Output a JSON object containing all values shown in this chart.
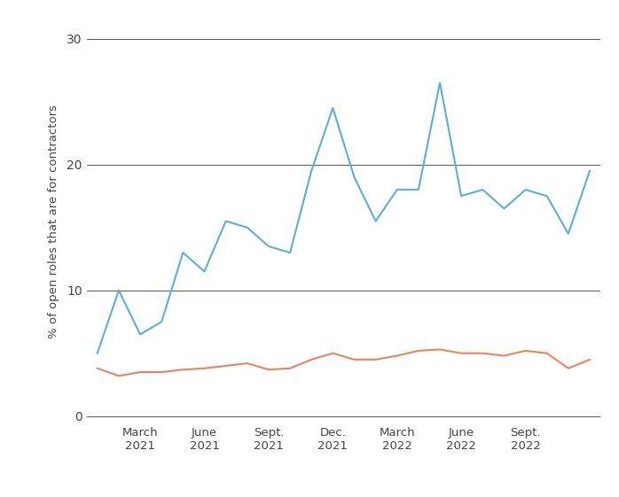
{
  "blue_values": [
    5.0,
    10.0,
    6.5,
    7.5,
    13.0,
    11.5,
    15.5,
    15.0,
    13.5,
    13.0,
    19.5,
    24.5,
    19.0,
    15.5,
    18.0,
    18.0,
    26.5,
    17.5,
    18.0,
    16.5,
    18.0,
    17.5,
    14.5,
    19.5
  ],
  "orange_values": [
    3.8,
    3.2,
    3.5,
    3.5,
    3.7,
    3.8,
    4.0,
    4.2,
    3.7,
    3.8,
    4.5,
    5.0,
    4.5,
    4.5,
    4.8,
    5.2,
    5.3,
    5.0,
    5.0,
    4.8,
    5.2,
    5.0,
    3.8,
    4.5
  ],
  "yticks": [
    0,
    10,
    20,
    30
  ],
  "ylim": [
    -0.5,
    31.5
  ],
  "xlim_left": -0.5,
  "xlim_right": 23.5,
  "ylabel": "% of open roles that are for contractors",
  "blue_color": "#5bafd6",
  "orange_color": "#e8845c",
  "grid_color": "#555555",
  "background_color": "#ffffff",
  "line_width": 1.5,
  "x_tick_positions": [
    2,
    5,
    8,
    11,
    14,
    17,
    20
  ],
  "x_tick_labels": [
    "March\n2021",
    "June\n2021",
    "Sept.\n2021",
    "Dec.\n2021",
    "March\n2022",
    "June\n2022",
    "Sept.\n2022"
  ]
}
